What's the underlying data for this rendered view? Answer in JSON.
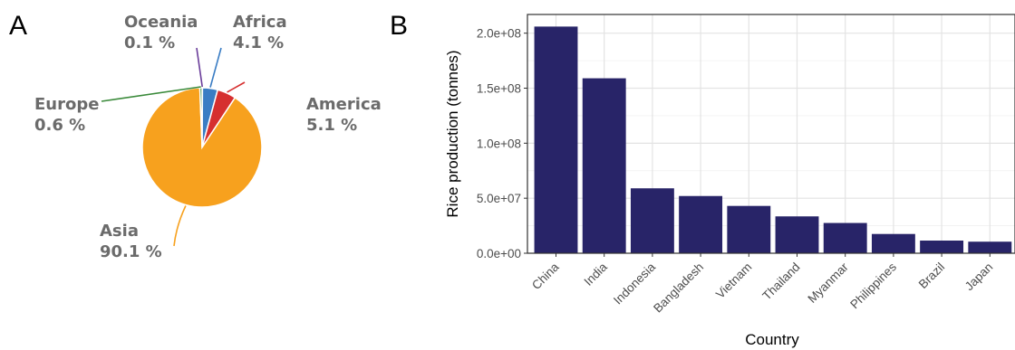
{
  "panels": {
    "a_letter": "A",
    "b_letter": "B"
  },
  "chart_data": [
    {
      "type": "pie",
      "categories": [
        "Oceania",
        "Africa",
        "America",
        "Asia",
        "Europe"
      ],
      "values": [
        0.1,
        4.1,
        5.1,
        90.1,
        0.6
      ],
      "value_labels": [
        "0.1 %",
        "4.1 %",
        "5.1 %",
        "90.1 %",
        "0.6 %"
      ],
      "colors": [
        "#6a3d9a",
        "#3a7dc4",
        "#d62f2f",
        "#f7a11e",
        "#3a8a3a"
      ],
      "title": ""
    },
    {
      "type": "bar",
      "categories": [
        "China",
        "India",
        "Indonesia",
        "Bangladesh",
        "Vietnam",
        "Thailand",
        "Myanmar",
        "Philippines",
        "Brazil",
        "Japan"
      ],
      "values": [
        206000000,
        159000000,
        59000000,
        52000000,
        43000000,
        33500000,
        27500000,
        17500000,
        11500000,
        10500000
      ],
      "xlabel": "Country",
      "ylabel": "Rice production (tonnes)",
      "ylim": [
        0,
        217000000
      ],
      "yticks": [
        0,
        50000000,
        100000000,
        150000000,
        200000000
      ],
      "ytick_labels": [
        "0.0e+00",
        "5.0e+07",
        "1.0e+08",
        "1.5e+08",
        "2.0e+08"
      ],
      "bar_color": "#282468",
      "grid": true,
      "title": ""
    }
  ]
}
